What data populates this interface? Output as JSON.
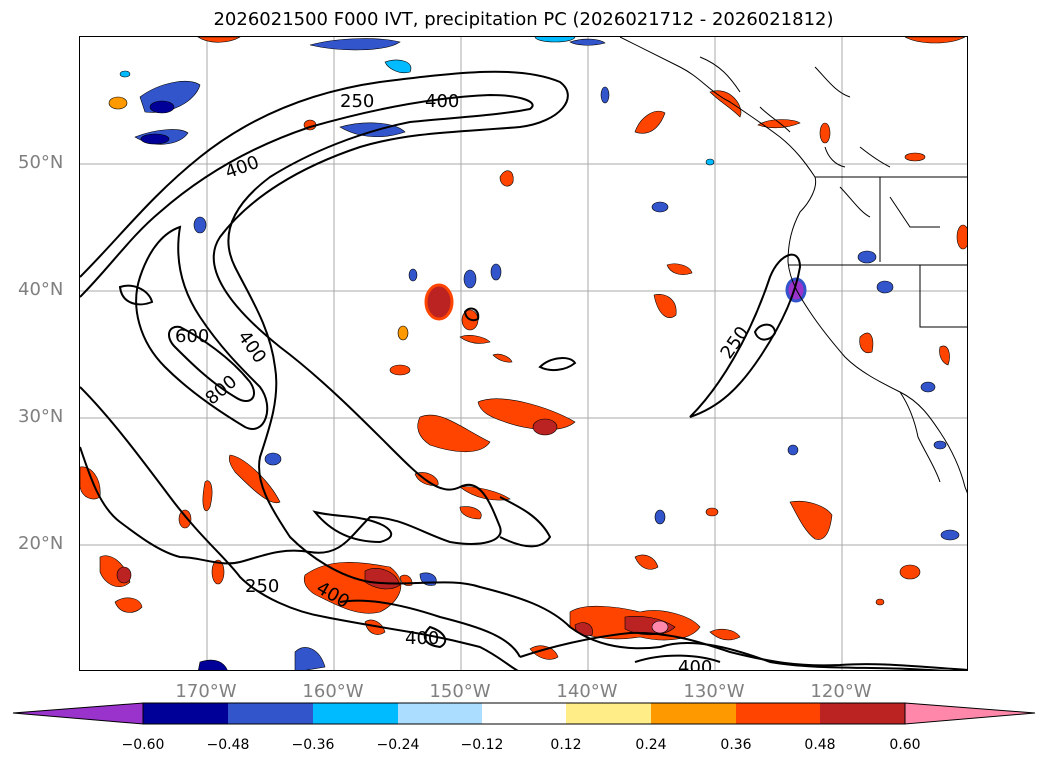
{
  "title": "2026021500 F000 IVT, precipitation PC (2026021712 - 2026021812)",
  "lat_labels": [
    "50°N",
    "40°N",
    "30°N",
    "20°N"
  ],
  "lon_labels": [
    "170°W",
    "160°W",
    "150°W",
    "140°W",
    "130°W",
    "120°W"
  ],
  "contour_labels": [
    "250",
    "400",
    "400",
    "600",
    "400",
    "800",
    "250",
    "250",
    "400",
    "400",
    "400"
  ],
  "colorbar": {
    "ticks": [
      "−0.60",
      "−0.48",
      "−0.36",
      "−0.24",
      "−0.12",
      "0.12",
      "0.24",
      "0.36",
      "0.48",
      "0.60"
    ],
    "levels": [
      -0.6,
      -0.48,
      -0.36,
      -0.24,
      -0.12,
      0.12,
      0.24,
      0.36,
      0.48,
      0.6
    ],
    "colors": [
      "#9933cc",
      "#000099",
      "#3355cc",
      "#00bbff",
      "#aaddff",
      "#ffffff",
      "#ffee88",
      "#ff9900",
      "#ff4400",
      "#bb2222",
      "#ff88aa"
    ]
  },
  "map_extent": {
    "lon": [
      -180,
      -110
    ],
    "lat": [
      10,
      60
    ]
  }
}
